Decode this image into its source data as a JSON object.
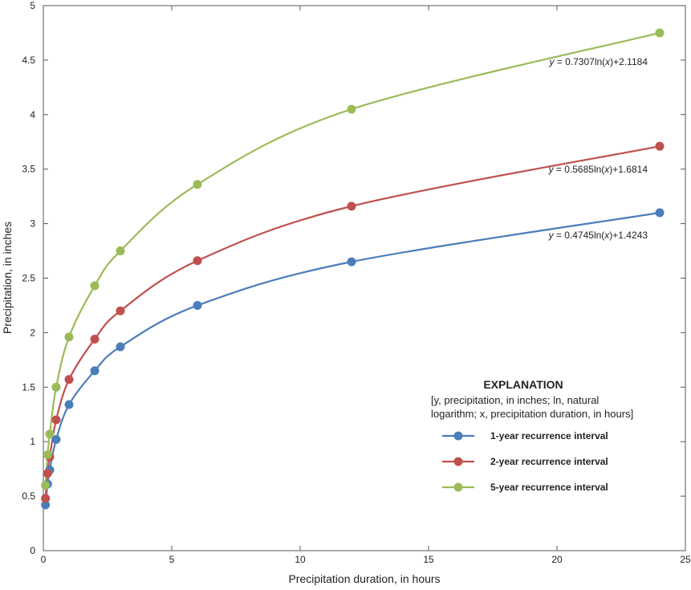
{
  "chart_data": {
    "type": "scatter",
    "title": "",
    "xlabel": "Precipitation duration, in hours",
    "ylabel": "Precipitation, in inches",
    "xlim": [
      0,
      25
    ],
    "ylim": [
      0,
      5
    ],
    "xticks": [
      0,
      5,
      10,
      15,
      20,
      25
    ],
    "xtick_labels": [
      "0",
      "5",
      "10",
      "15",
      "20",
      "25"
    ],
    "yticks": [
      0,
      0.5,
      1,
      1.5,
      2,
      2.5,
      3,
      3.5,
      4,
      4.5,
      5
    ],
    "ytick_labels": [
      "0",
      "0.5",
      "1",
      "1.5",
      "2",
      "2.5",
      "3",
      "3.5",
      "4",
      "4.5",
      "5"
    ],
    "grid": false,
    "legend": {
      "placement": "lower-right",
      "title": "EXPLANATION",
      "note_lines": [
        "[y, precipitation, in inches; ln, natural",
        "logarithm; x, precipitation duration, in hours]"
      ]
    },
    "series": [
      {
        "name": "1-year recurrence interval",
        "color": "#4a7ebb",
        "x": [
          0.083,
          0.167,
          0.25,
          0.5,
          1,
          2,
          3,
          6,
          12,
          24
        ],
        "y": [
          0.42,
          0.61,
          0.74,
          1.02,
          1.34,
          1.65,
          1.87,
          2.25,
          2.65,
          3.1
        ],
        "fit": {
          "a": 0.4745,
          "b": 1.4243
        },
        "equation": {
          "prefix": "y",
          "mid": " = 0.4745ln(",
          "var": "x",
          "suffix": ")+1.4243"
        }
      },
      {
        "name": "2-year recurrence interval",
        "color": "#c0504d",
        "x": [
          0.083,
          0.167,
          0.25,
          0.5,
          1,
          2,
          3,
          6,
          12,
          24
        ],
        "y": [
          0.48,
          0.71,
          0.86,
          1.2,
          1.57,
          1.94,
          2.2,
          2.66,
          3.16,
          3.71
        ],
        "fit": {
          "a": 0.5685,
          "b": 1.6814
        },
        "equation": {
          "prefix": "y",
          "mid": " = 0.5685ln(",
          "var": "x",
          "suffix": ")+1.6814"
        }
      },
      {
        "name": "5-year recurrence interval",
        "color": "#9bbb59",
        "x": [
          0.083,
          0.167,
          0.25,
          0.5,
          1,
          2,
          3,
          6,
          12,
          24
        ],
        "y": [
          0.6,
          0.88,
          1.07,
          1.5,
          1.96,
          2.43,
          2.75,
          3.36,
          4.05,
          4.75
        ],
        "fit": {
          "a": 0.7307,
          "b": 2.1184
        },
        "equation": {
          "prefix": "y",
          "mid": " = 0.7307ln(",
          "var": "x",
          "suffix": ")+2.1184"
        }
      }
    ]
  }
}
